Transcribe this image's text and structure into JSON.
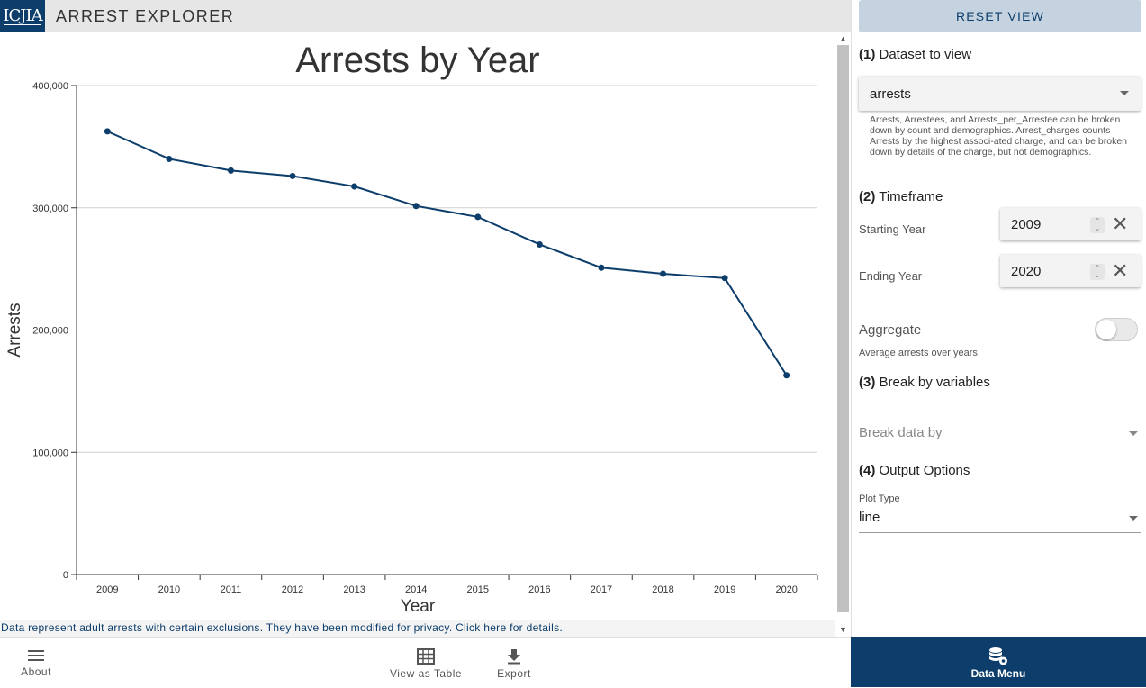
{
  "header": {
    "logo_text": "ICJIA",
    "app_title": "ARREST EXPLORER"
  },
  "chart_data": {
    "type": "line",
    "title": "Arrests by Year",
    "xlabel": "Year",
    "ylabel": "Arrests",
    "categories": [
      "2009",
      "2010",
      "2011",
      "2012",
      "2013",
      "2014",
      "2015",
      "2016",
      "2017",
      "2018",
      "2019",
      "2020"
    ],
    "values": [
      362500,
      340000,
      330500,
      326000,
      317500,
      301500,
      292500,
      270000,
      251000,
      246000,
      242500,
      163000
    ],
    "ylim": [
      0,
      400000
    ],
    "yticks": [
      0,
      100000,
      200000,
      300000,
      400000
    ],
    "ytick_labels": [
      "0",
      "100,000",
      "200,000",
      "300,000",
      "400,000"
    ],
    "grid": true,
    "line_color": "#0c3d6b"
  },
  "scrollbar": {
    "up_arrow": "▲",
    "down_arrow": "▼"
  },
  "footnote": "Data represent adult arrests with certain exclusions. They have been modified for privacy. Click here for details.",
  "bottom_nav": {
    "about_label": "About",
    "table_label": "View as Table",
    "export_label": "Export"
  },
  "panel": {
    "reset_label": "RESET VIEW",
    "s1_num": "(1)",
    "s1_title": " Dataset to view",
    "dataset_value": "arrests",
    "dataset_help": "Arrests, Arrestees, and Arrests_per_Arrestee can be broken down by count and demographics. Arrest_charges counts Arrests by the highest associ-ated charge, and can be broken down by details of the charge, but not demographics.",
    "s2_num": "(2)",
    "s2_title": " Timeframe",
    "start_label": "Starting Year",
    "start_value": "2009",
    "end_label": "Ending Year",
    "end_value": "2020",
    "clear_glyph": "✕",
    "aggregate_label": "Aggregate",
    "aggregate_on": false,
    "aggregate_help": "Average arrests over years.",
    "s3_num": "(3)",
    "s3_title": " Break by variables",
    "break_placeholder": "Break data by",
    "s4_num": "(4)",
    "s4_title": " Output Options",
    "plot_type_label": "Plot Type",
    "plot_type_value": "line",
    "data_menu_label": "Data Menu"
  }
}
